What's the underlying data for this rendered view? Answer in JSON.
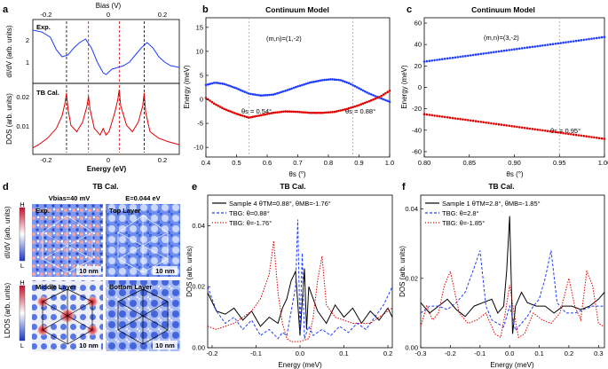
{
  "panels": {
    "a": {
      "label": "a",
      "top_xlabel": "Bias (V)",
      "top_ticks": [
        "-0.2",
        "0",
        "0.2"
      ],
      "xlabel": "Energy (eV)",
      "x_ticks": [
        "-0.2",
        "0",
        "0.2"
      ],
      "upper_ylabel": "dI/dV (arb. units)",
      "upper_ticks": [
        "2",
        "1"
      ],
      "upper_tag": "Exp.",
      "lower_ylabel": "DOS (arb. units)",
      "lower_ticks": [
        "0.02",
        "0.01"
      ],
      "lower_tag": "TB Cal."
    },
    "b": {
      "label": "b",
      "title": "Continuum Model",
      "mn": "(m,n)=(1,-2)",
      "ann1": "θs = 0.54°",
      "ann2": "θs = 0.88°",
      "xlabel": "θs (°)",
      "ylabel": "Energy (meV)",
      "x_ticks": [
        "0.4",
        "0.5",
        "0.6",
        "0.7",
        "0.8",
        "0.9",
        "1.0"
      ],
      "y_ticks": [
        "15",
        "10",
        "5",
        "0",
        "-5",
        "-10"
      ]
    },
    "c": {
      "label": "c",
      "title": "Continuum Model",
      "mn": "(m,n)=(3,-2)",
      "ann": "θs = 0.95°",
      "xlabel": "θs (°)",
      "ylabel": "Energy (meV)",
      "x_ticks": [
        "0.80",
        "0.85",
        "0.90",
        "0.95",
        "1.00"
      ],
      "y_ticks": [
        "60",
        "40",
        "20",
        "0",
        "-20",
        "-40",
        "-60"
      ]
    },
    "d": {
      "label": "d",
      "title": "TB Cal.",
      "vbias": "Vbias=40 mV",
      "energy": "E=0.044 eV",
      "tiles": [
        "Exp.",
        "Top Layer",
        "Middle Layer",
        "Bottom Layer"
      ],
      "scale": "10 nm",
      "ylabel_top": "dI/dV (arb. units)",
      "ylabel_bottom": "LDOS (arb. units)",
      "cb_high": "H",
      "cb_low": "L"
    },
    "e": {
      "label": "e",
      "title": "TB Cal.",
      "xlabel": "Energy (meV)",
      "ylabel": "DOS (arb. units)",
      "x_ticks": [
        "-0.2",
        "-0.1",
        "0.0",
        "0.1",
        "0.2"
      ],
      "y_ticks": [
        "0.04",
        "0.02",
        "0.00"
      ],
      "legend": [
        "Sample 4  θTM=0.88°, θMB=-1.76°",
        "TBG: θ=0.88°",
        "TBG: θ=-1.76°"
      ]
    },
    "f": {
      "label": "f",
      "title": "TB Cal.",
      "xlabel": "Energy (meV)",
      "ylabel": "DOS (arb. units)",
      "x_ticks": [
        "-0.3",
        "-0.2",
        "-0.1",
        "0.0",
        "0.1",
        "0.2",
        "0.3"
      ],
      "y_ticks": [
        "0.04",
        "0.02",
        "0.00"
      ],
      "legend": [
        "Sample 1  θTM=2.8°, θMB=-1.85°",
        "TBG: θ=2.8°",
        "TBG: θ=-1.85°"
      ]
    }
  },
  "chart_data": [
    {
      "panel": "a-upper",
      "type": "line",
      "xlim": [
        -0.25,
        0.25
      ],
      "series": [
        {
          "color": "#1f3cff",
          "x": [
            -0.25,
            -0.22,
            -0.19,
            -0.17,
            -0.15,
            -0.13,
            -0.11,
            -0.09,
            -0.07,
            -0.05,
            -0.03,
            -0.01,
            0.0,
            0.02,
            0.04,
            0.06,
            0.08,
            0.1,
            0.12,
            0.14,
            0.16,
            0.18,
            0.2,
            0.22,
            0.25
          ],
          "y": [
            2.1,
            2.05,
            1.9,
            1.55,
            1.35,
            1.4,
            1.6,
            1.75,
            1.85,
            1.6,
            1.2,
            0.9,
            0.85,
            1.0,
            1.05,
            1.1,
            1.2,
            1.4,
            1.6,
            1.75,
            1.6,
            1.35,
            1.2,
            1.1,
            1.05
          ]
        }
      ],
      "vlines": [
        -0.135,
        -0.06,
        0.045,
        0.13
      ]
    },
    {
      "panel": "a-lower",
      "type": "line",
      "xlim": [
        -0.25,
        0.25
      ],
      "series": [
        {
          "color": "#e00000",
          "x": [
            -0.25,
            -0.23,
            -0.2,
            -0.17,
            -0.15,
            -0.14,
            -0.135,
            -0.13,
            -0.12,
            -0.1,
            -0.08,
            -0.065,
            -0.06,
            -0.055,
            -0.04,
            -0.02,
            -0.01,
            0.0,
            0.01,
            0.03,
            0.04,
            0.045,
            0.05,
            0.07,
            0.09,
            0.11,
            0.125,
            0.13,
            0.135,
            0.15,
            0.18,
            0.21,
            0.25
          ],
          "y": [
            0.005,
            0.006,
            0.008,
            0.011,
            0.015,
            0.019,
            0.022,
            0.017,
            0.012,
            0.01,
            0.013,
            0.018,
            0.021,
            0.017,
            0.011,
            0.009,
            0.011,
            0.009,
            0.01,
            0.016,
            0.02,
            0.023,
            0.018,
            0.012,
            0.01,
            0.013,
            0.018,
            0.022,
            0.016,
            0.01,
            0.008,
            0.007,
            0.006
          ]
        }
      ],
      "vlines": [
        -0.135,
        -0.06,
        0.045,
        0.13
      ]
    },
    {
      "panel": "b",
      "type": "scatter",
      "xlim": [
        0.4,
        1.0
      ],
      "ylim": [
        -12,
        17
      ],
      "vlines": [
        0.54,
        0.88
      ],
      "series": [
        {
          "color": "#1f3cff",
          "x": [
            0.4,
            0.43,
            0.46,
            0.5,
            0.54,
            0.58,
            0.62,
            0.66,
            0.7,
            0.74,
            0.78,
            0.81,
            0.84,
            0.87,
            0.9,
            0.93,
            0.96,
            1.0
          ],
          "y": [
            3.0,
            3.5,
            3.2,
            2.3,
            1.2,
            0.8,
            1.0,
            1.8,
            2.7,
            3.5,
            4.0,
            4.2,
            4.0,
            3.3,
            2.3,
            1.3,
            0.5,
            -0.5
          ]
        },
        {
          "color": "#e00000",
          "x": [
            0.4,
            0.43,
            0.46,
            0.5,
            0.54,
            0.58,
            0.62,
            0.66,
            0.7,
            0.74,
            0.78,
            0.82,
            0.86,
            0.9,
            0.94,
            0.97,
            1.0
          ],
          "y": [
            0.3,
            -1.0,
            -2.0,
            -3.0,
            -3.8,
            -3.3,
            -2.8,
            -2.5,
            -2.6,
            -2.8,
            -2.8,
            -2.6,
            -2.0,
            -1.2,
            -0.2,
            0.6,
            1.8
          ]
        }
      ]
    },
    {
      "panel": "c",
      "type": "scatter",
      "xlim": [
        0.8,
        1.0
      ],
      "ylim": [
        -65,
        65
      ],
      "vlines": [
        0.95
      ],
      "series": [
        {
          "color": "#1f3cff",
          "x": [
            0.8,
            1.0
          ],
          "y": [
            24,
            47
          ]
        },
        {
          "color": "#e00000",
          "x": [
            0.8,
            1.0
          ],
          "y": [
            -25,
            -48
          ]
        }
      ]
    },
    {
      "panel": "e",
      "type": "line",
      "xlim": [
        -0.21,
        0.21
      ],
      "ylim": [
        0,
        0.05
      ],
      "series": [
        {
          "color": "#000000",
          "x": [
            -0.21,
            -0.19,
            -0.17,
            -0.15,
            -0.13,
            -0.11,
            -0.09,
            -0.07,
            -0.05,
            -0.04,
            -0.03,
            -0.02,
            -0.01,
            0.0,
            0.01,
            0.015,
            0.02,
            0.03,
            0.04,
            0.06,
            0.08,
            0.1,
            0.12,
            0.14,
            0.16,
            0.18,
            0.2,
            0.21
          ],
          "y": [
            0.018,
            0.012,
            0.011,
            0.013,
            0.009,
            0.012,
            0.007,
            0.01,
            0.008,
            0.013,
            0.016,
            0.022,
            0.025,
            0.004,
            0.026,
            0.006,
            0.02,
            0.016,
            0.012,
            0.008,
            0.014,
            0.01,
            0.013,
            0.008,
            0.012,
            0.009,
            0.013,
            0.01
          ]
        },
        {
          "color": "#1f3cff",
          "x": [
            -0.21,
            -0.19,
            -0.17,
            -0.15,
            -0.13,
            -0.11,
            -0.09,
            -0.07,
            -0.05,
            -0.04,
            -0.03,
            -0.02,
            -0.01,
            -0.005,
            0.0,
            0.005,
            0.01,
            0.02,
            0.03,
            0.05,
            0.07,
            0.09,
            0.11,
            0.13,
            0.15,
            0.17,
            0.19,
            0.21
          ],
          "y": [
            0.02,
            0.012,
            0.008,
            0.01,
            0.006,
            0.009,
            0.004,
            0.006,
            0.003,
            0.005,
            0.004,
            0.012,
            0.02,
            0.042,
            0.005,
            0.031,
            0.003,
            0.007,
            0.004,
            0.006,
            0.004,
            0.007,
            0.005,
            0.008,
            0.006,
            0.01,
            0.014,
            0.02
          ]
        },
        {
          "color": "#e00000",
          "x": [
            -0.21,
            -0.19,
            -0.17,
            -0.15,
            -0.13,
            -0.11,
            -0.09,
            -0.07,
            -0.06,
            -0.05,
            -0.04,
            -0.03,
            -0.02,
            0.0,
            0.02,
            0.03,
            0.04,
            0.05,
            0.06,
            0.08,
            0.1,
            0.12,
            0.14,
            0.16,
            0.18,
            0.2,
            0.21
          ],
          "y": [
            0.007,
            0.006,
            0.007,
            0.008,
            0.01,
            0.012,
            0.016,
            0.024,
            0.035,
            0.018,
            0.008,
            0.003,
            0.002,
            0.002,
            0.003,
            0.01,
            0.022,
            0.03,
            0.014,
            0.01,
            0.009,
            0.008,
            0.008,
            0.008,
            0.01,
            0.012,
            0.013
          ]
        }
      ]
    },
    {
      "panel": "f",
      "type": "line",
      "xlim": [
        -0.3,
        0.32
      ],
      "ylim": [
        0,
        0.044
      ],
      "series": [
        {
          "color": "#000000",
          "x": [
            -0.3,
            -0.27,
            -0.24,
            -0.21,
            -0.18,
            -0.15,
            -0.12,
            -0.09,
            -0.06,
            -0.04,
            -0.02,
            -0.01,
            0.0,
            0.01,
            0.02,
            0.04,
            0.06,
            0.09,
            0.12,
            0.15,
            0.18,
            0.21,
            0.24,
            0.27,
            0.3,
            0.32
          ],
          "y": [
            0.013,
            0.01,
            0.012,
            0.014,
            0.011,
            0.009,
            0.012,
            0.013,
            0.014,
            0.01,
            0.012,
            0.022,
            0.038,
            0.004,
            0.012,
            0.016,
            0.013,
            0.012,
            0.012,
            0.01,
            0.012,
            0.012,
            0.011,
            0.012,
            0.014,
            0.016
          ]
        },
        {
          "color": "#1f3cff",
          "x": [
            -0.3,
            -0.27,
            -0.24,
            -0.21,
            -0.18,
            -0.15,
            -0.12,
            -0.1,
            -0.08,
            -0.06,
            -0.04,
            -0.02,
            0.0,
            0.02,
            0.04,
            0.06,
            0.08,
            0.1,
            0.12,
            0.14,
            0.16,
            0.19,
            0.22,
            0.25,
            0.28,
            0.32
          ],
          "y": [
            0.01,
            0.012,
            0.012,
            0.011,
            0.013,
            0.016,
            0.023,
            0.028,
            0.012,
            0.008,
            0.007,
            0.006,
            0.012,
            0.005,
            0.007,
            0.009,
            0.012,
            0.014,
            0.02,
            0.028,
            0.013,
            0.01,
            0.01,
            0.011,
            0.012,
            0.012
          ]
        },
        {
          "color": "#e00000",
          "x": [
            -0.3,
            -0.28,
            -0.26,
            -0.24,
            -0.22,
            -0.2,
            -0.17,
            -0.14,
            -0.11,
            -0.08,
            -0.05,
            -0.03,
            -0.015,
            0.0,
            0.015,
            0.03,
            0.05,
            0.08,
            0.11,
            0.14,
            0.17,
            0.2,
            0.22,
            0.24,
            0.26,
            0.28,
            0.3,
            0.32
          ],
          "y": [
            0.006,
            0.012,
            0.008,
            0.01,
            0.018,
            0.022,
            0.01,
            0.007,
            0.008,
            0.01,
            0.004,
            0.003,
            0.01,
            0.018,
            0.01,
            0.003,
            0.004,
            0.01,
            0.008,
            0.007,
            0.01,
            0.02,
            0.012,
            0.008,
            0.022,
            0.018,
            0.007,
            0.006
          ]
        }
      ]
    }
  ]
}
